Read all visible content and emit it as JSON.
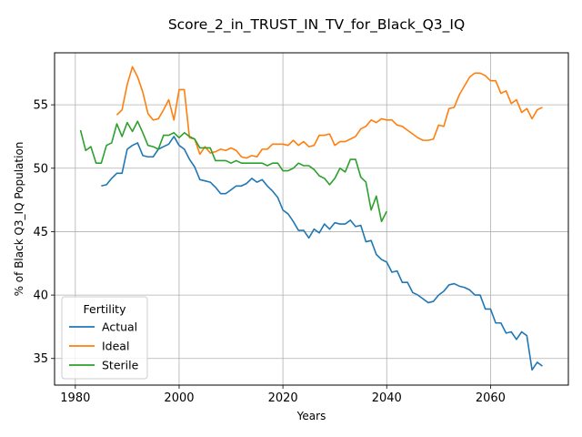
{
  "chart_data": {
    "type": "line",
    "title": "Score_2_in_TRUST_IN_TV_for_Black_Q3_IQ",
    "xlabel": "Years",
    "ylabel": "% of Black Q3_IQ Population",
    "xlim": [
      1976,
      2075
    ],
    "ylim": [
      32.9,
      59.1
    ],
    "xticks": [
      1980,
      2000,
      2020,
      2040,
      2060
    ],
    "yticks": [
      35,
      40,
      45,
      50,
      55
    ],
    "grid": true,
    "legend": {
      "title": "Fertility",
      "position": "lower-left"
    },
    "series": [
      {
        "name": "Actual",
        "color": "#1f77b4",
        "x": [
          1985,
          1986,
          1987,
          1988,
          1989,
          1990,
          1991,
          1992,
          1993,
          1994,
          1995,
          1996,
          1997,
          1998,
          1999,
          2000,
          2001,
          2002,
          2003,
          2004,
          2005,
          2006,
          2007,
          2008,
          2009,
          2010,
          2011,
          2012,
          2013,
          2014,
          2015,
          2016,
          2017,
          2018,
          2019,
          2020,
          2021,
          2022,
          2023,
          2024,
          2025,
          2026,
          2027,
          2028,
          2029,
          2030,
          2031,
          2032,
          2033,
          2034,
          2035,
          2036,
          2037,
          2038,
          2039,
          2040,
          2041,
          2042,
          2043,
          2044,
          2045,
          2046,
          2047,
          2048,
          2049,
          2050,
          2051,
          2052,
          2053,
          2054,
          2055,
          2056,
          2057,
          2058,
          2059,
          2060,
          2061,
          2062,
          2063,
          2064,
          2065,
          2066,
          2067,
          2068,
          2069,
          2070
        ],
        "values": [
          48.6,
          48.7,
          49.2,
          49.6,
          49.6,
          51.5,
          51.8,
          52.0,
          51.0,
          50.9,
          50.9,
          51.5,
          51.7,
          51.9,
          52.5,
          51.8,
          51.5,
          50.7,
          50.1,
          49.1,
          49.0,
          48.9,
          48.5,
          48.0,
          48.0,
          48.3,
          48.6,
          48.6,
          48.8,
          49.2,
          48.9,
          49.1,
          48.6,
          48.2,
          47.7,
          46.7,
          46.4,
          45.8,
          45.1,
          45.1,
          44.5,
          45.2,
          44.9,
          45.6,
          45.2,
          45.7,
          45.6,
          45.6,
          45.9,
          45.4,
          45.5,
          44.2,
          44.3,
          43.2,
          42.8,
          42.6,
          41.8,
          41.9,
          41.0,
          41.0,
          40.2,
          40.0,
          39.7,
          39.4,
          39.5,
          40.0,
          40.3,
          40.8,
          40.9,
          40.7,
          40.6,
          40.4,
          40.0,
          40.0,
          38.9,
          38.9,
          37.8,
          37.8,
          37.0,
          37.1,
          36.5,
          37.1,
          36.8,
          34.1,
          34.7,
          34.4
        ]
      },
      {
        "name": "Ideal",
        "color": "#ff7f0e",
        "x": [
          1988,
          1989,
          1990,
          1991,
          1992,
          1993,
          1994,
          1995,
          1996,
          1997,
          1998,
          1999,
          2000,
          2001,
          2002,
          2003,
          2004,
          2005,
          2006,
          2007,
          2008,
          2009,
          2010,
          2011,
          2012,
          2013,
          2014,
          2015,
          2016,
          2017,
          2018,
          2019,
          2020,
          2021,
          2022,
          2023,
          2024,
          2025,
          2026,
          2027,
          2028,
          2029,
          2030,
          2031,
          2032,
          2033,
          2034,
          2035,
          2036,
          2037,
          2038,
          2039,
          2040,
          2041,
          2042,
          2043,
          2044,
          2045,
          2046,
          2047,
          2048,
          2049,
          2050,
          2051,
          2052,
          2053,
          2054,
          2055,
          2056,
          2057,
          2058,
          2059,
          2060,
          2061,
          2062,
          2063,
          2064,
          2065,
          2066,
          2067,
          2068,
          2069,
          2070
        ],
        "values": [
          54.2,
          54.6,
          56.6,
          58.0,
          57.2,
          56.0,
          54.3,
          53.8,
          53.9,
          54.6,
          55.4,
          53.8,
          56.2,
          56.2,
          52.4,
          52.3,
          51.1,
          51.7,
          51.2,
          51.3,
          51.5,
          51.4,
          51.6,
          51.4,
          50.9,
          50.8,
          51.0,
          50.9,
          51.5,
          51.5,
          51.9,
          51.9,
          51.9,
          51.8,
          52.2,
          51.8,
          52.1,
          51.7,
          51.8,
          52.6,
          52.6,
          52.7,
          51.8,
          52.1,
          52.1,
          52.3,
          52.5,
          53.1,
          53.3,
          53.8,
          53.6,
          53.9,
          53.8,
          53.8,
          53.4,
          53.3,
          53.0,
          52.7,
          52.4,
          52.2,
          52.2,
          52.3,
          53.4,
          53.3,
          54.7,
          54.8,
          55.8,
          56.5,
          57.2,
          57.5,
          57.5,
          57.3,
          56.9,
          56.9,
          55.9,
          56.1,
          55.1,
          55.4,
          54.4,
          54.7,
          53.9,
          54.6,
          54.8
        ]
      },
      {
        "name": "Sterile",
        "color": "#2ca02c",
        "x": [
          1981,
          1982,
          1983,
          1984,
          1985,
          1986,
          1987,
          1988,
          1989,
          1990,
          1991,
          1992,
          1993,
          1994,
          1995,
          1996,
          1997,
          1998,
          1999,
          2000,
          2001,
          2002,
          2003,
          2004,
          2005,
          2006,
          2007,
          2008,
          2009,
          2010,
          2011,
          2012,
          2013,
          2014,
          2015,
          2016,
          2017,
          2018,
          2019,
          2020,
          2021,
          2022,
          2023,
          2024,
          2025,
          2026,
          2027,
          2028,
          2029,
          2030,
          2031,
          2032,
          2033,
          2034,
          2035,
          2036,
          2037,
          2038,
          2039,
          2040
        ],
        "values": [
          53.0,
          51.4,
          51.7,
          50.4,
          50.4,
          51.8,
          52.0,
          53.5,
          52.5,
          53.6,
          52.9,
          53.7,
          52.8,
          51.8,
          51.7,
          51.5,
          52.6,
          52.6,
          52.8,
          52.4,
          52.8,
          52.5,
          52.3,
          51.6,
          51.6,
          51.6,
          50.6,
          50.6,
          50.6,
          50.4,
          50.6,
          50.4,
          50.4,
          50.4,
          50.4,
          50.4,
          50.2,
          50.4,
          50.4,
          49.8,
          49.8,
          50.0,
          50.4,
          50.2,
          50.2,
          49.9,
          49.4,
          49.2,
          48.7,
          49.2,
          50.0,
          49.7,
          50.7,
          50.7,
          49.3,
          48.9,
          46.7,
          47.8,
          45.8,
          46.6
        ]
      }
    ]
  }
}
